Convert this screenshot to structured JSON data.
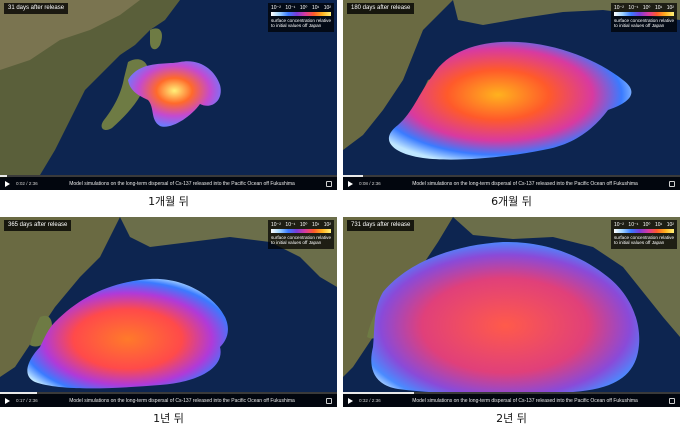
{
  "colorbar": {
    "ticks": [
      "10⁻²",
      "10⁻¹",
      "10⁰",
      "10¹",
      "10²"
    ],
    "caption": "surface concentration relative to initial values off Japan",
    "colors": [
      "#ffffff",
      "#9fd3ff",
      "#3a7bff",
      "#7a3cd8",
      "#d83aa0",
      "#ff5a2a",
      "#ffb21e",
      "#fff27a"
    ]
  },
  "video_caption": "Model simulations on the long-term dispersal of Cs-137 released into the Pacific Ocean off Fukushima",
  "icons": {
    "play": "play-icon",
    "fullscreen": "fullscreen-icon"
  },
  "panels": [
    {
      "days_label": "31 days after release",
      "time": "0:02 / 2:36",
      "progress": 0.02,
      "caption": "1개월 뒤"
    },
    {
      "days_label": "180 days after release",
      "time": "0:08 / 2:36",
      "progress": 0.06,
      "caption": "6개월 뒤"
    },
    {
      "days_label": "365 days after release",
      "time": "0:17 / 2:36",
      "progress": 0.11,
      "caption": "1년 뒤"
    },
    {
      "days_label": "731 days after release",
      "time": "0:32 / 2:36",
      "progress": 0.21,
      "caption": "2년 뒤"
    }
  ]
}
